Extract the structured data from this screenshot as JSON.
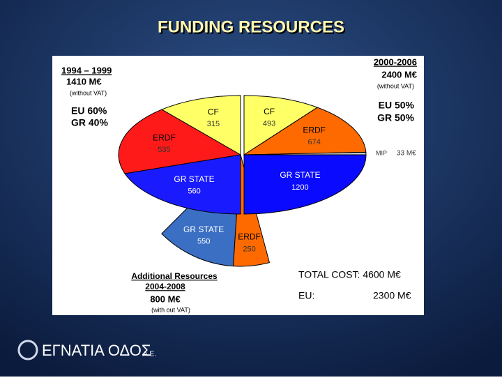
{
  "title": "FUNDING RESOURCES",
  "chart_data": [
    {
      "type": "pie",
      "title": "1994 – 1999",
      "subtitle": "1410 M€",
      "note": "(without VAT)",
      "annotations": [
        "EU 60%",
        "GR 40%"
      ],
      "categories": [
        "CF",
        "ERDF",
        "GR STATE"
      ],
      "values": [
        315,
        535,
        560
      ],
      "colors": [
        "#ffff66",
        "#ff1a1a",
        "#1a1aff"
      ]
    },
    {
      "type": "pie",
      "title": "2000-2006",
      "subtitle": "2400 M€",
      "note": "(without VAT)",
      "annotations": [
        "EU 50%",
        "GR 50%"
      ],
      "categories": [
        "CF",
        "ERDF",
        "MIP",
        "GR STATE"
      ],
      "values": [
        493,
        674,
        33,
        1200
      ],
      "value_labels": [
        "493",
        "674",
        "33 M€",
        "1200"
      ],
      "colors": [
        "#ffff66",
        "#ff6a00",
        "#c8c8c8",
        "#0a0aff"
      ]
    },
    {
      "type": "pie",
      "title": "Additional Resources",
      "subtitle": "2004-2008",
      "total": "800 M€",
      "note": "(with out VAT)",
      "categories": [
        "GR STATE",
        "ERDF"
      ],
      "values": [
        550,
        250
      ],
      "colors": [
        "#3a6fc4",
        "#ff6a00"
      ]
    }
  ],
  "summary": {
    "total": "TOTAL COST: 4600 M€",
    "eu_label": "EU:",
    "eu_value": "2300 M€"
  },
  "logo": {
    "name": "ΕΓΝΑΤΙΑ ΟΔΟΣ",
    "suffix": "A.E."
  }
}
